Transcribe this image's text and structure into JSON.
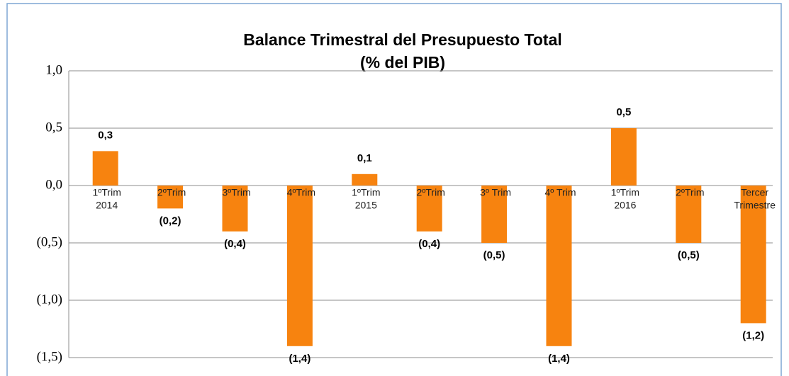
{
  "chart_data": {
    "type": "bar",
    "title": "Balance Trimestral del Presupuesto Total",
    "subtitle": "(% del PIB)",
    "categories": [
      [
        "1ºTrim",
        "2014"
      ],
      [
        "2ºTrim"
      ],
      [
        "3ºTrim"
      ],
      [
        "4ºTrim"
      ],
      [
        "1ºTrim",
        "2015"
      ],
      [
        "2ºTrim"
      ],
      [
        "3º Trim"
      ],
      [
        "4º Trim"
      ],
      [
        "1ºTrim",
        "2016"
      ],
      [
        "2ºTrim"
      ],
      [
        "Tercer",
        "Trimestre"
      ]
    ],
    "values": [
      0.3,
      -0.2,
      -0.4,
      -1.4,
      0.1,
      -0.4,
      -0.5,
      -1.4,
      0.5,
      -0.5,
      -1.2
    ],
    "value_labels": [
      "0,3",
      "(0,2)",
      "(0,4)",
      "(1,4)",
      "0,1",
      "(0,4)",
      "(0,5)",
      "(1,4)",
      "0,5",
      "(0,5)",
      "(1,2)"
    ],
    "color": "#f7830f",
    "ylim": [
      -1.5,
      1.0
    ],
    "yticks": [
      {
        "value": -1.5,
        "label": "(1,5)"
      },
      {
        "value": -1.0,
        "label": "(1,0)"
      },
      {
        "value": -0.5,
        "label": "(0,5)"
      },
      {
        "value": 0.0,
        "label": "0,0"
      },
      {
        "value": 0.5,
        "label": "0,5"
      },
      {
        "value": 1.0,
        "label": "1,0"
      }
    ],
    "grid": true
  }
}
